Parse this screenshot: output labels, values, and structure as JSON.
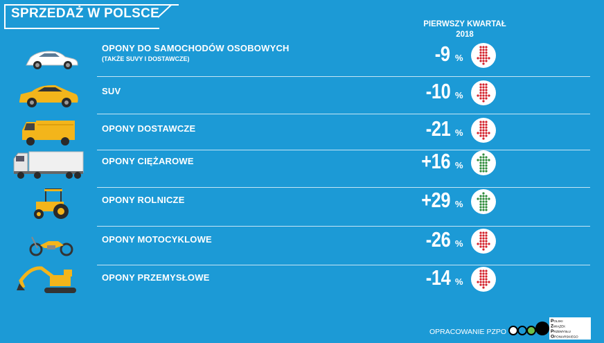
{
  "title": "SPRZEDAŻ W POLSCE",
  "column_header": {
    "line1": "PIERWSZY KWARTAŁ",
    "line2": "2018"
  },
  "rows": [
    {
      "label": "OPONY DO SAMOCHODÓW OSOBOWYCH",
      "sublabel": "(TAKŻE SUVY I DOSTAWCZE)",
      "value": "-9",
      "unit": "%",
      "direction": "down",
      "icon": "passenger-car-icon"
    },
    {
      "label": "SUV",
      "sublabel": "",
      "value": "-10",
      "unit": "%",
      "direction": "down",
      "icon": "suv-icon"
    },
    {
      "label": "OPONY DOSTAWCZE",
      "sublabel": "",
      "value": "-21",
      "unit": "%",
      "direction": "down",
      "icon": "delivery-truck-icon"
    },
    {
      "label": "OPONY CIĘŻAROWE",
      "sublabel": "",
      "value": "+16",
      "unit": "%",
      "direction": "up",
      "icon": "semi-truck-icon"
    },
    {
      "label": "OPONY ROLNICZE",
      "sublabel": "",
      "value": "+29",
      "unit": "%",
      "direction": "up",
      "icon": "tractor-icon"
    },
    {
      "label": "OPONY MOTOCYKLOWE",
      "sublabel": "",
      "value": "-26",
      "unit": "%",
      "direction": "down",
      "icon": "motorcycle-icon"
    },
    {
      "label": "OPONY PRZEMYSŁOWE",
      "sublabel": "",
      "value": "-14",
      "unit": "%",
      "direction": "down",
      "icon": "excavator-icon"
    }
  ],
  "footer": {
    "credit": "OPRACOWANIE PZPO",
    "logo_letters": [
      "P",
      "Z",
      "P",
      "O"
    ],
    "logo_words": [
      "OLSKI",
      "WIĄZEK",
      "RZEMYSŁU",
      "PONIARSKIEGO"
    ]
  },
  "colors": {
    "background": "#1c9ad6",
    "down": "#d3202a",
    "up": "#2e8b3a",
    "text": "#ffffff"
  }
}
